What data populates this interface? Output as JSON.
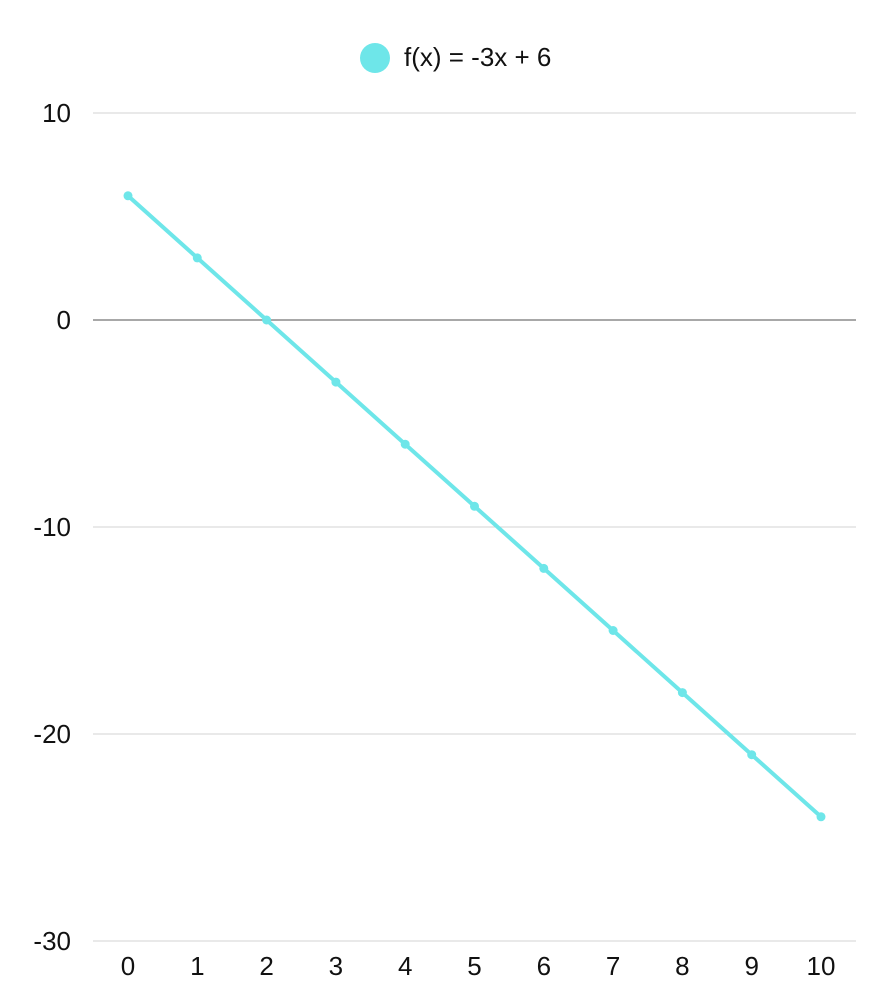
{
  "chart_data": {
    "type": "line",
    "legend_position": "top-center",
    "grid": true,
    "x": [
      0,
      1,
      2,
      3,
      4,
      5,
      6,
      7,
      8,
      9,
      10
    ],
    "xticks": [
      "0",
      "1",
      "2",
      "3",
      "4",
      "5",
      "6",
      "7",
      "8",
      "9",
      "10"
    ],
    "ylim": [
      -30,
      10
    ],
    "yticks": [
      10,
      0,
      -10,
      -20,
      -30
    ],
    "series": [
      {
        "name": "f(x) = -3x + 6",
        "color": "#6ee6e9",
        "values": [
          6,
          3,
          0,
          -3,
          -6,
          -9,
          -12,
          -15,
          -18,
          -21,
          -24
        ]
      }
    ]
  }
}
